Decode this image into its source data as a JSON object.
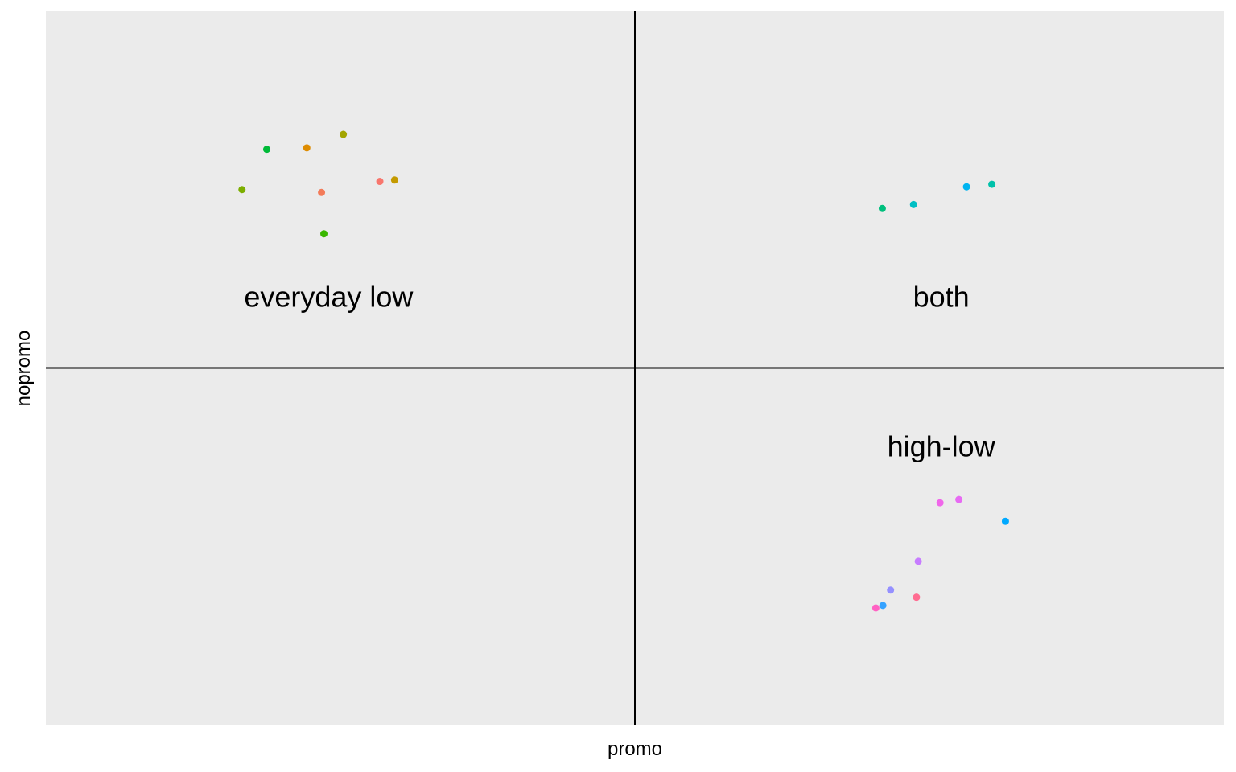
{
  "chart_data": {
    "type": "scatter",
    "title": "",
    "xlabel": "promo",
    "ylabel": "nopromo",
    "xlim": [
      -1,
      1
    ],
    "ylim": [
      -1,
      1
    ],
    "grid": false,
    "ticks": false,
    "legend": "none",
    "reference_lines": {
      "x": 0,
      "y": 0
    },
    "annotations": [
      {
        "text": "everyday low",
        "x": -0.52,
        "y": 0.2
      },
      {
        "text": "both",
        "x": 0.52,
        "y": 0.2
      },
      {
        "text": "high-low",
        "x": 0.52,
        "y": -0.22
      }
    ],
    "points": [
      {
        "x": -0.625,
        "y": 0.613,
        "color": "#00BA38"
      },
      {
        "x": -0.557,
        "y": 0.617,
        "color": "#DE8C00"
      },
      {
        "x": -0.495,
        "y": 0.655,
        "color": "#A3A500"
      },
      {
        "x": -0.667,
        "y": 0.5,
        "color": "#7CAE00"
      },
      {
        "x": -0.532,
        "y": 0.492,
        "color": "#F37B59"
      },
      {
        "x": -0.433,
        "y": 0.523,
        "color": "#F8766D"
      },
      {
        "x": -0.408,
        "y": 0.527,
        "color": "#C49A00"
      },
      {
        "x": -0.528,
        "y": 0.376,
        "color": "#39B600"
      },
      {
        "x": 0.42,
        "y": 0.447,
        "color": "#00BF7D"
      },
      {
        "x": 0.473,
        "y": 0.458,
        "color": "#00BFC4"
      },
      {
        "x": 0.563,
        "y": 0.508,
        "color": "#00B4F0"
      },
      {
        "x": 0.606,
        "y": 0.515,
        "color": "#00C1AA"
      },
      {
        "x": 0.518,
        "y": -0.378,
        "color": "#F066EA"
      },
      {
        "x": 0.55,
        "y": -0.369,
        "color": "#E76BF3"
      },
      {
        "x": 0.629,
        "y": -0.43,
        "color": "#00A9FF"
      },
      {
        "x": 0.481,
        "y": -0.542,
        "color": "#C77CFF"
      },
      {
        "x": 0.434,
        "y": -0.623,
        "color": "#9590FF"
      },
      {
        "x": 0.478,
        "y": -0.643,
        "color": "#FF6C91"
      },
      {
        "x": 0.421,
        "y": -0.666,
        "color": "#35A2FF"
      },
      {
        "x": 0.409,
        "y": -0.673,
        "color": "#FF61C3"
      }
    ]
  }
}
